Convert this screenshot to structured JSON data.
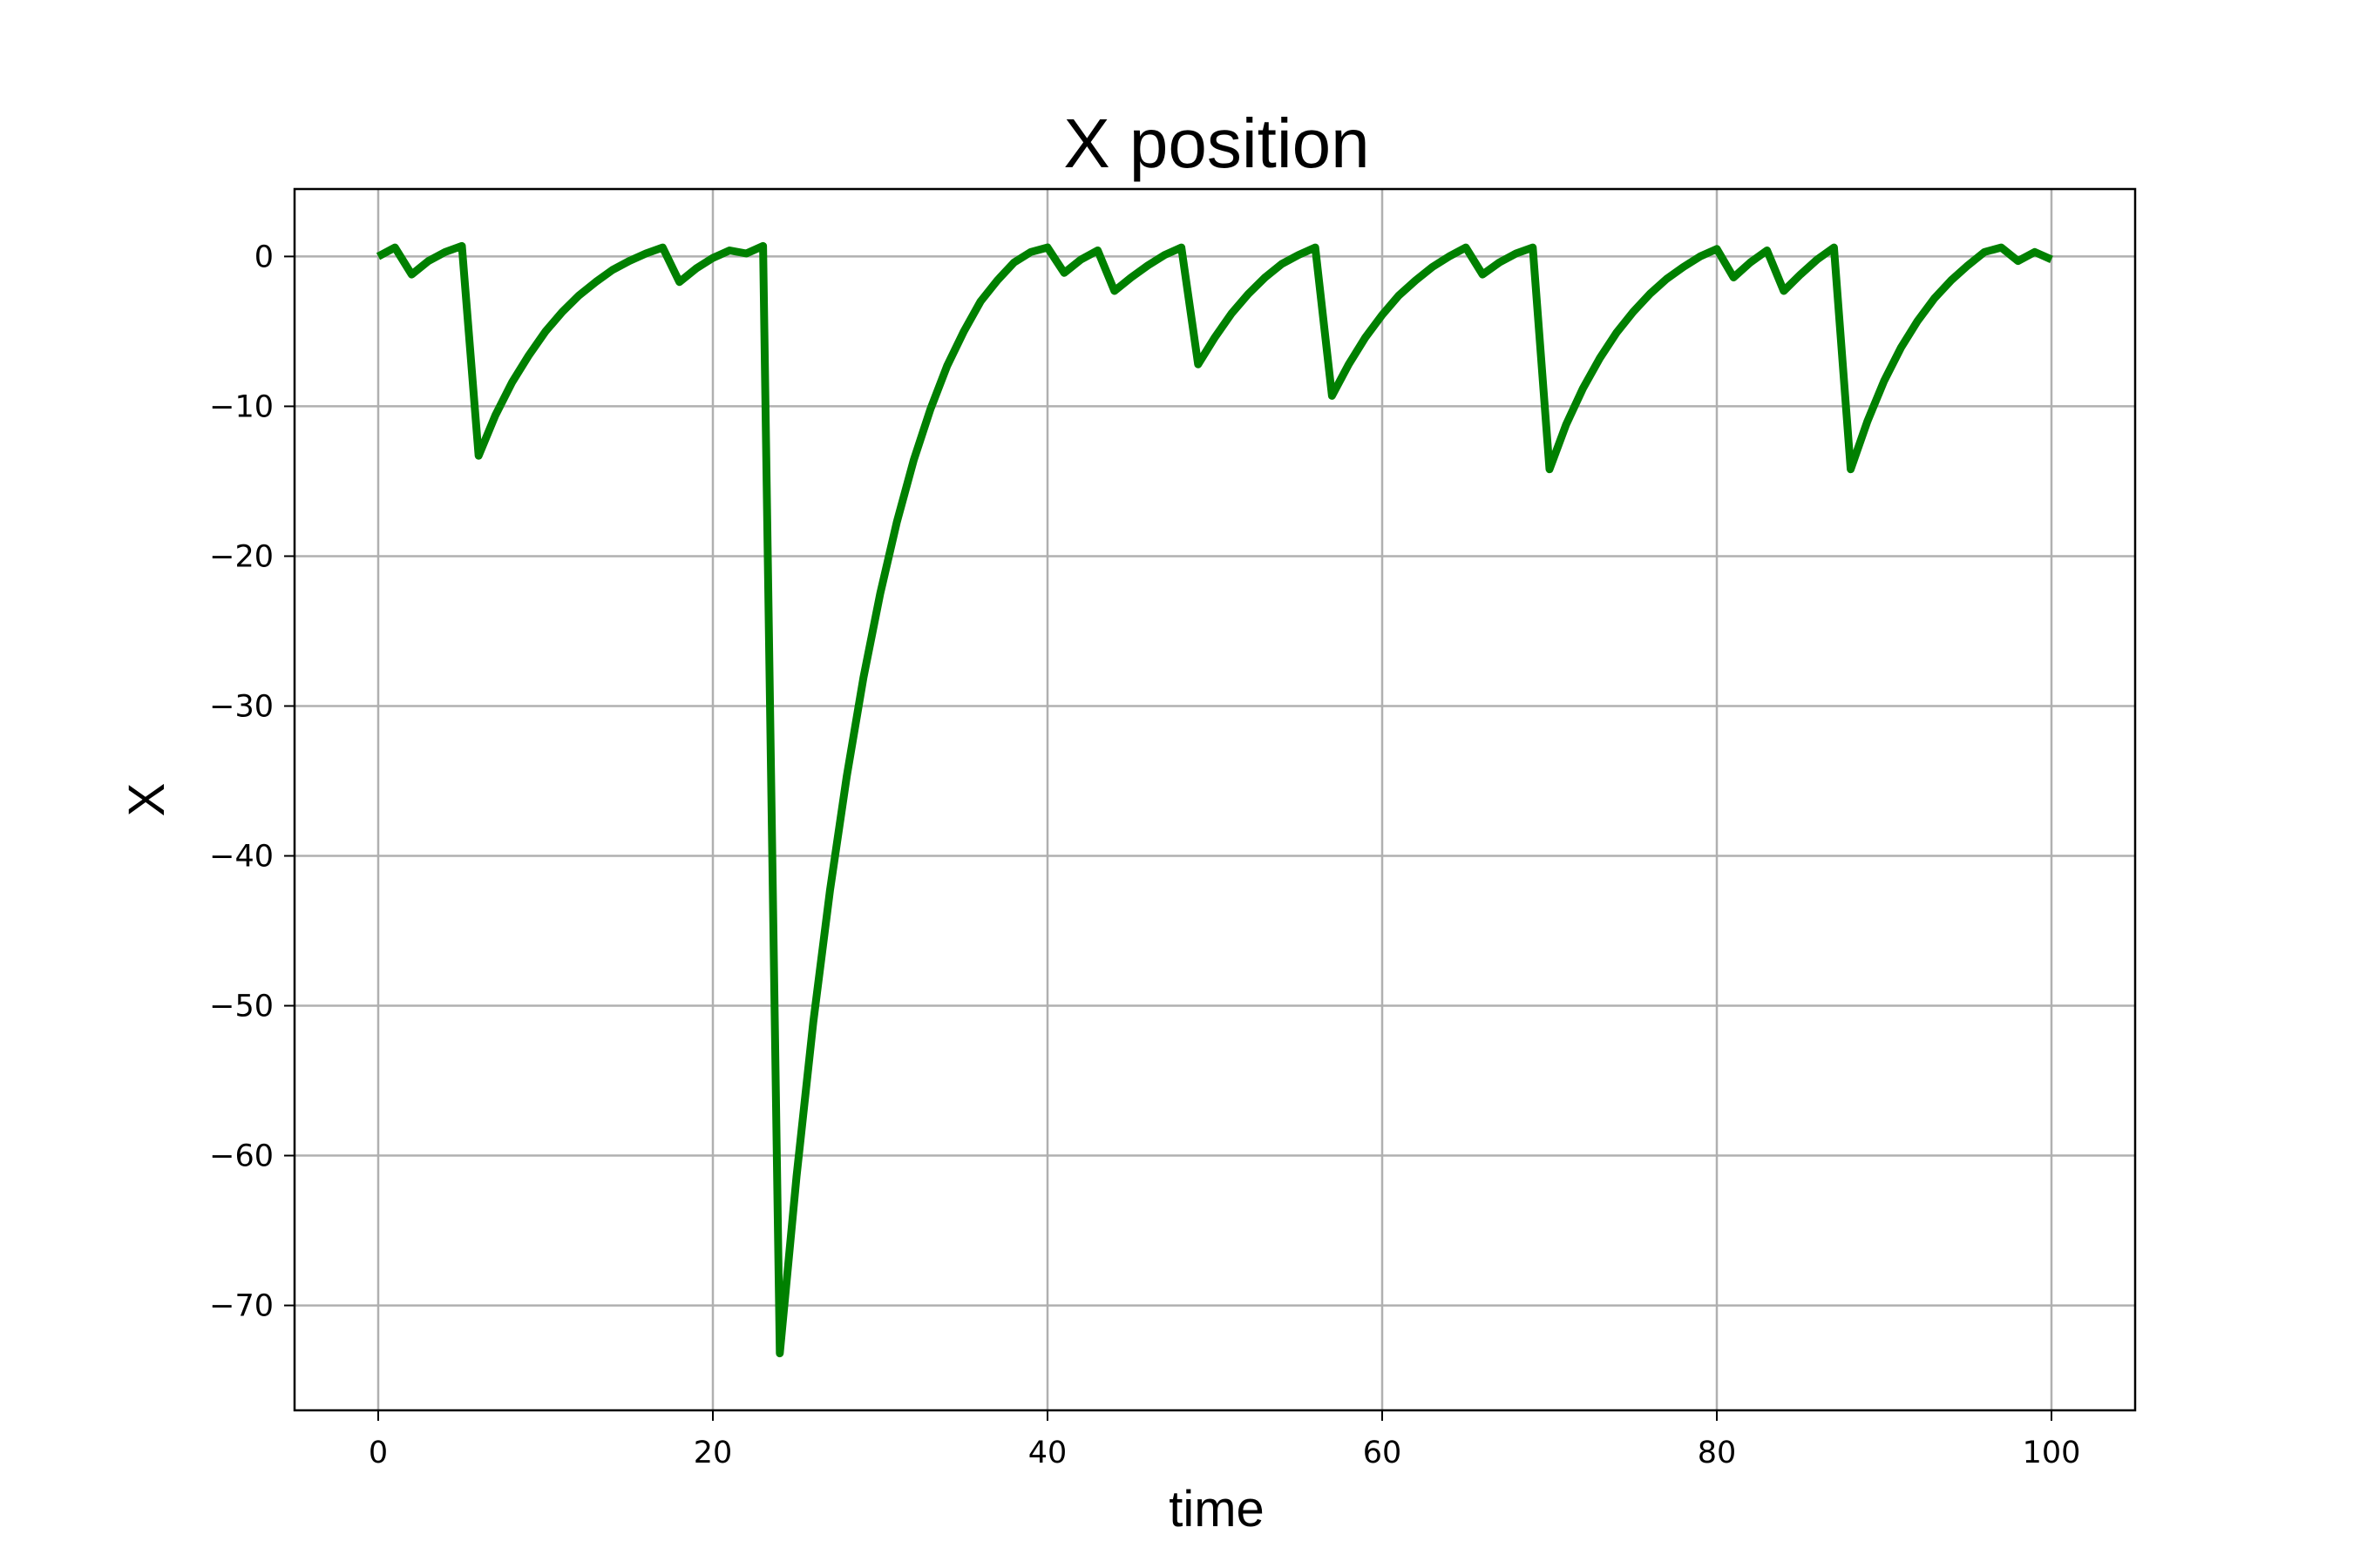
{
  "chart_data": {
    "type": "line",
    "title": "X position",
    "xlabel": "time",
    "ylabel": "X",
    "xlim": [
      -5,
      105
    ],
    "ylim": [
      -77,
      4.5
    ],
    "xticks": [
      0,
      20,
      40,
      60,
      80,
      100
    ],
    "yticks": [
      0,
      -10,
      -20,
      -30,
      -40,
      -50,
      -60,
      -70
    ],
    "xtick_labels": [
      "0",
      "20",
      "40",
      "60",
      "80",
      "100"
    ],
    "ytick_labels": [
      "0",
      "−10",
      "−20",
      "−30",
      "−40",
      "−50",
      "−60",
      "−70"
    ],
    "grid": true,
    "series": [
      {
        "color": "#008000",
        "x": [
          0,
          1,
          2,
          3,
          4,
          5,
          6,
          7,
          8,
          9,
          10,
          11,
          12,
          13,
          14,
          15,
          16,
          17,
          18,
          19,
          20,
          21,
          22,
          23,
          24,
          25,
          26,
          27,
          28,
          29,
          30,
          31,
          32,
          33,
          34,
          35,
          36,
          37,
          38,
          39,
          40,
          41,
          42,
          43,
          44,
          45,
          46,
          47,
          48,
          49,
          50,
          51,
          52,
          53,
          54,
          55,
          56,
          57,
          58,
          59,
          60,
          61,
          62,
          63,
          64,
          65,
          66,
          67,
          68,
          69,
          70,
          71,
          72,
          73,
          74,
          75,
          76,
          77,
          78,
          79,
          80,
          81,
          82,
          83,
          84,
          85,
          86,
          87,
          88,
          89,
          90,
          91,
          92,
          93,
          94,
          95,
          96,
          97,
          98,
          99,
          100
        ],
        "y": [
          0,
          0.6,
          -1.2,
          -0.3,
          0.3,
          0.7,
          -13.3,
          -10.6,
          -8.4,
          -6.6,
          -5.0,
          -3.7,
          -2.6,
          -1.7,
          -0.9,
          -0.3,
          0.2,
          0.6,
          -1.7,
          -0.8,
          -0.1,
          0.4,
          0.2,
          0.7,
          -73.2,
          -61.4,
          -51.1,
          -42.3,
          -34.7,
          -28.1,
          -22.5,
          -17.7,
          -13.6,
          -10.2,
          -7.3,
          -5.0,
          -3.0,
          -1.6,
          -0.4,
          0.3,
          0.6,
          -1.1,
          -0.2,
          0.4,
          -2.3,
          -1.4,
          -0.6,
          0.1,
          0.6,
          -7.2,
          -5.4,
          -3.8,
          -2.5,
          -1.4,
          -0.5,
          0.1,
          0.6,
          -9.3,
          -7.2,
          -5.4,
          -3.9,
          -2.6,
          -1.6,
          -0.7,
          0,
          0.6,
          -1.2,
          -0.4,
          0.2,
          0.6,
          -14.2,
          -11.2,
          -8.8,
          -6.8,
          -5.1,
          -3.7,
          -2.5,
          -1.5,
          -0.7,
          0,
          0.5,
          -1.4,
          -0.4,
          0.4,
          -2.3,
          -1.2,
          -0.2,
          0.6,
          -14.2,
          -11.0,
          -8.3,
          -6.1,
          -4.3,
          -2.8,
          -1.6,
          -0.6,
          0.3,
          0.6,
          -0.3,
          0.3,
          -0.2
        ]
      }
    ]
  }
}
